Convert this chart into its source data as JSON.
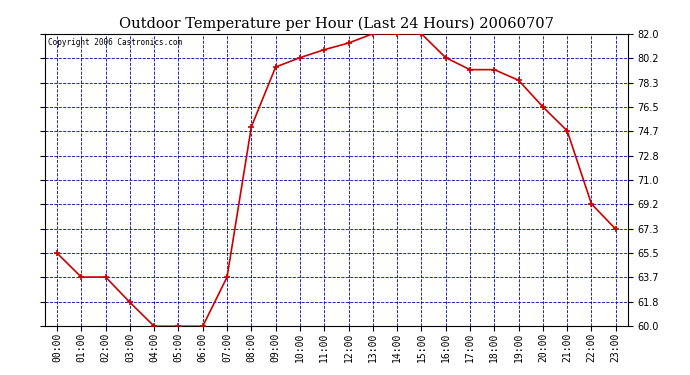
{
  "title": "Outdoor Temperature per Hour (Last 24 Hours) 20060707",
  "copyright_text": "Copyright 2006 Castronics.com",
  "hours": [
    "00:00",
    "01:00",
    "02:00",
    "03:00",
    "04:00",
    "05:00",
    "06:00",
    "07:00",
    "08:00",
    "09:00",
    "10:00",
    "11:00",
    "12:00",
    "13:00",
    "14:00",
    "15:00",
    "16:00",
    "17:00",
    "18:00",
    "19:00",
    "20:00",
    "21:00",
    "22:00",
    "23:00"
  ],
  "temps": [
    65.5,
    63.7,
    63.7,
    61.8,
    60.0,
    60.0,
    60.0,
    63.7,
    75.0,
    79.5,
    80.2,
    80.8,
    81.3,
    82.0,
    82.0,
    82.0,
    80.2,
    79.3,
    79.3,
    78.5,
    76.5,
    74.7,
    69.2,
    67.3
  ],
  "line_color": "#cc0000",
  "marker_color": "#cc0000",
  "bg_color": "#ffffff",
  "plot_bg_color": "#ffffff",
  "grid_color": "#0000bb",
  "axis_color": "#000000",
  "title_color": "#000000",
  "ylim_min": 60.0,
  "ylim_max": 82.0,
  "yticks": [
    60.0,
    61.8,
    63.7,
    65.5,
    67.3,
    69.2,
    71.0,
    72.8,
    74.7,
    76.5,
    78.3,
    80.2,
    82.0
  ],
  "title_fontsize": 10.5,
  "tick_fontsize": 7,
  "copyright_fontsize": 5.5
}
